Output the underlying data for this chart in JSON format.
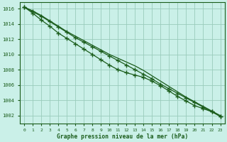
{
  "title": "Graphe pression niveau de la mer (hPa)",
  "bg_color": "#caf0e8",
  "grid_color": "#99ccbb",
  "line_color": "#1a5c1a",
  "marker_color": "#1a5c1a",
  "label_color": "#1a5c1a",
  "ylim": [
    1001.0,
    1016.8
  ],
  "xlim": [
    -0.5,
    23.5
  ],
  "yticks": [
    1002,
    1004,
    1006,
    1008,
    1010,
    1012,
    1014,
    1016
  ],
  "xticks": [
    0,
    1,
    2,
    3,
    4,
    5,
    6,
    7,
    8,
    9,
    10,
    11,
    12,
    13,
    14,
    15,
    16,
    17,
    18,
    19,
    20,
    21,
    22,
    23
  ],
  "series1": [
    1016.2,
    1015.6,
    1015.0,
    1014.3,
    1013.6,
    1012.9,
    1012.2,
    1011.6,
    1011.0,
    1010.4,
    1009.8,
    1009.2,
    1008.6,
    1008.0,
    1007.4,
    1006.8,
    1006.1,
    1005.5,
    1004.9,
    1004.3,
    1003.7,
    1003.1,
    1002.5,
    1001.9
  ],
  "series2": [
    1016.2,
    1015.7,
    1015.1,
    1014.4,
    1013.7,
    1013.0,
    1012.4,
    1011.8,
    1011.2,
    1010.6,
    1010.0,
    1009.5,
    1009.0,
    1008.5,
    1007.9,
    1007.2,
    1006.5,
    1005.8,
    1005.1,
    1004.4,
    1003.8,
    1003.2,
    1002.6,
    1002.0
  ],
  "series3": [
    1016.2,
    1015.4,
    1014.5,
    1013.7,
    1012.8,
    1012.1,
    1011.4,
    1010.7,
    1010.0,
    1009.3,
    1008.6,
    1008.0,
    1007.6,
    1007.3,
    1007.0,
    1006.5,
    1005.9,
    1005.2,
    1004.5,
    1003.9,
    1003.3,
    1002.9,
    1002.5,
    1001.9
  ]
}
